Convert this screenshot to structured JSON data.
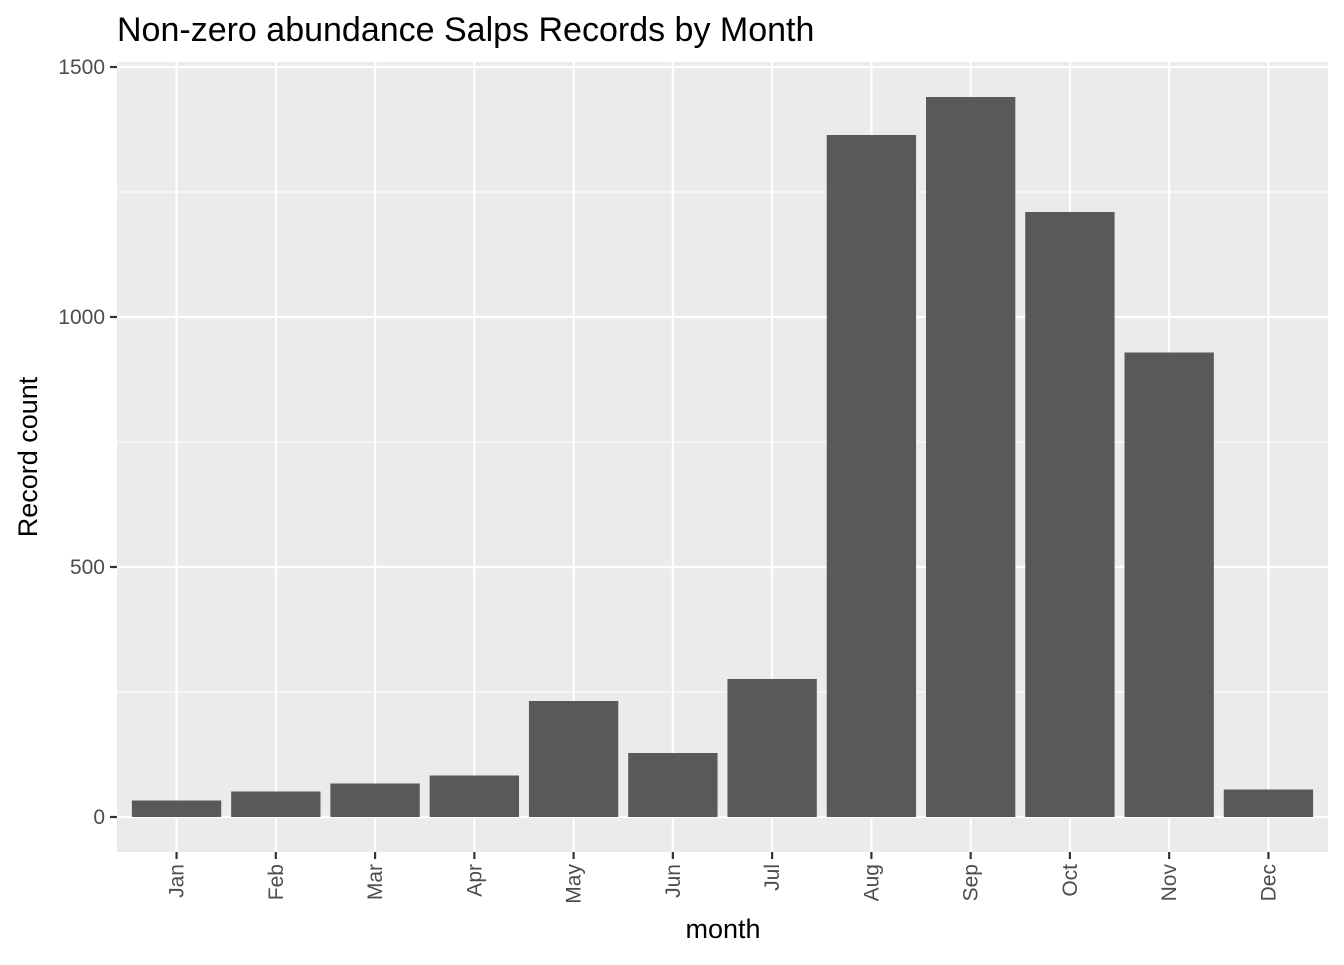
{
  "chart_data": {
    "type": "bar",
    "title": "Non-zero abundance Salps Records by Month",
    "xlabel": "month",
    "ylabel": "Record count",
    "categories": [
      "Jan",
      "Feb",
      "Mar",
      "Apr",
      "May",
      "Jun",
      "Jul",
      "Aug",
      "Sep",
      "Oct",
      "Nov",
      "Dec"
    ],
    "values": [
      33,
      51,
      67,
      83,
      232,
      128,
      276,
      1364,
      1440,
      1210,
      929,
      55
    ],
    "ylim": [
      -70,
      1510
    ],
    "yticks": [
      0,
      500,
      1000,
      1500
    ],
    "ytick_labels": [
      "0",
      "500",
      "1000",
      "1500"
    ],
    "grid": true,
    "legend": "none",
    "colors": {
      "bar": "#595959",
      "panel": "#ebebeb",
      "grid": "#ffffff",
      "axis_text": "#4d4d4d",
      "title_text": "#000000"
    }
  }
}
